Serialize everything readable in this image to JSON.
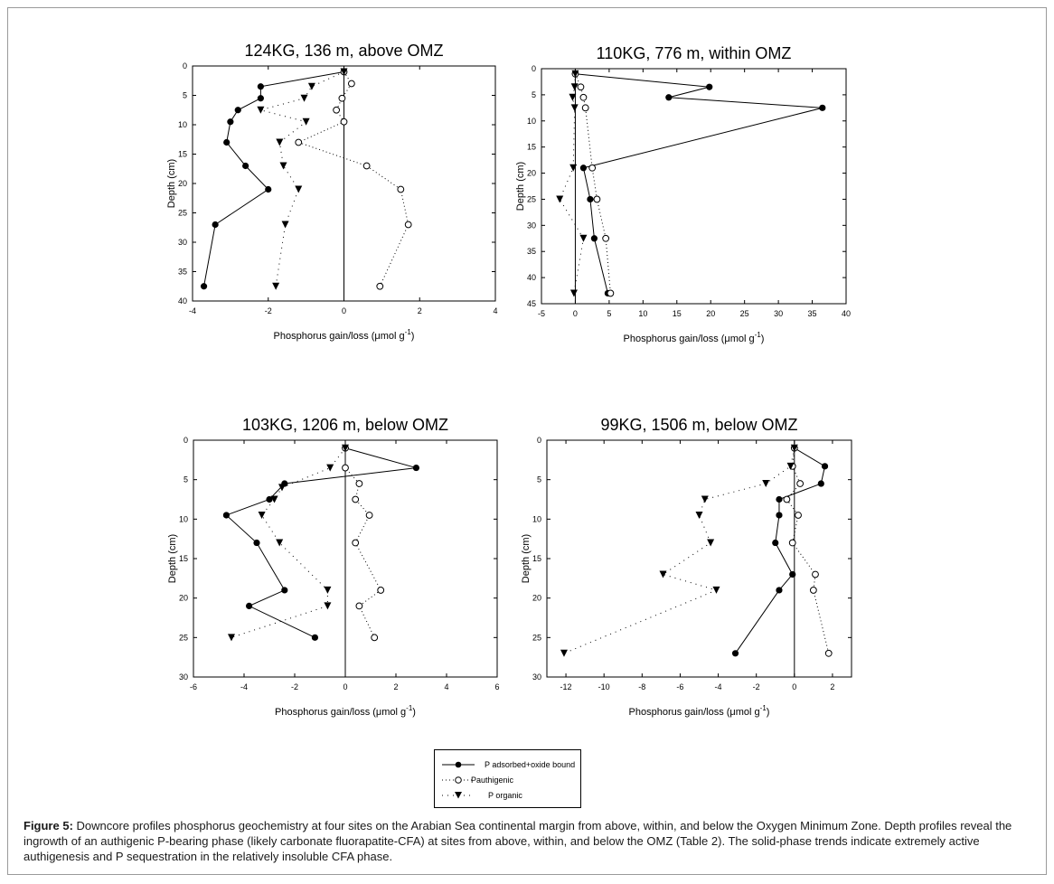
{
  "figure": {
    "caption_label": "Figure 5:",
    "caption_text": " Downcore profiles phosphorus geochemistry at four sites on the Arabian Sea continental margin from above, within, and below the Oxygen Minimum Zone. Depth profiles reveal the ingrowth of an authigenic P-bearing phase (likely carbonate fluorapatite-CFA) at sites from above, within, and below the OMZ (Table 2). The solid-phase trends indicate extremely active authigenesis and P sequestration in the relatively insoluble CFA phase."
  },
  "legend": {
    "items": [
      {
        "label": "P adsorbed+oxide bound",
        "marker": "filled-circle",
        "line": "solid"
      },
      {
        "label": "Pauthigenic",
        "marker": "open-circle",
        "line": "dotted"
      },
      {
        "label": "P organic",
        "marker": "filled-triangle",
        "line": "dotted"
      }
    ]
  },
  "colors": {
    "ink": "#000000",
    "frame": "#9a9a9a",
    "background": "#ffffff"
  },
  "chart_data": [
    {
      "type": "scatter",
      "title": "124KG, 136 m, above OMZ",
      "xlabel": "Phosphorus gain/loss (μmol g",
      "xlabel_sup": "-1",
      "xlabel_end": ")",
      "ylabel": "Depth (cm)",
      "xlim": [
        -4,
        4
      ],
      "ylim": [
        0,
        40
      ],
      "y_inverted": true,
      "xticks": [
        -4,
        -2,
        0,
        2,
        4
      ],
      "yticks": [
        0,
        5,
        10,
        15,
        20,
        25,
        30,
        35,
        40
      ],
      "series": [
        {
          "name": "P adsorbed+oxide bound",
          "style": "solid-filled-circle",
          "x": [
            0,
            -2.2,
            -2.2,
            -2.8,
            -3.0,
            -3.1,
            -2.6,
            -2.0,
            -3.4,
            -3.7
          ],
          "y": [
            1,
            3.5,
            5.5,
            7.5,
            9.5,
            13,
            17,
            21,
            27,
            37.5
          ]
        },
        {
          "name": "Pauthigenic",
          "style": "dotted-open-circle",
          "x": [
            0,
            0.2,
            -0.05,
            -0.2,
            0,
            -1.2,
            0.6,
            1.5,
            1.7,
            0.95
          ],
          "y": [
            1,
            3,
            5.5,
            7.5,
            9.5,
            13,
            17,
            21,
            27,
            37.5
          ]
        },
        {
          "name": "P organic",
          "style": "dotted-filled-triangle",
          "x": [
            0,
            -0.85,
            -1.05,
            -2.2,
            -1.0,
            -1.7,
            -1.6,
            -1.2,
            -1.55,
            -1.8
          ],
          "y": [
            1,
            3.5,
            5.5,
            7.5,
            9.5,
            13,
            17,
            21,
            27,
            37.5
          ]
        }
      ]
    },
    {
      "type": "scatter",
      "title": "110KG, 776 m, within OMZ",
      "xlabel": "Phosphorus gain/loss (μmol g",
      "xlabel_sup": "-1",
      "xlabel_end": ")",
      "ylabel": "Depth (cm)",
      "xlim": [
        -5,
        40
      ],
      "ylim": [
        0,
        45
      ],
      "y_inverted": true,
      "xticks": [
        -5,
        0,
        5,
        10,
        15,
        20,
        25,
        30,
        35,
        40
      ],
      "yticks": [
        0,
        5,
        10,
        15,
        20,
        25,
        30,
        35,
        40,
        45
      ],
      "series": [
        {
          "name": "P adsorbed+oxide bound",
          "style": "solid-filled-circle",
          "x": [
            0,
            19.8,
            13.8,
            36.5,
            1.2,
            2.2,
            2.8,
            4.8
          ],
          "y": [
            1,
            3.5,
            5.5,
            7.5,
            19,
            25,
            32.5,
            43
          ]
        },
        {
          "name": "Pauthigenic",
          "style": "dotted-open-circle",
          "x": [
            0,
            0.8,
            1.2,
            1.5,
            2.5,
            3.2,
            4.5,
            5.2
          ],
          "y": [
            1,
            3.5,
            5.5,
            7.5,
            19,
            25,
            32.5,
            43
          ]
        },
        {
          "name": "P organic",
          "style": "dotted-filled-triangle",
          "x": [
            0,
            -0.1,
            -0.4,
            -0.1,
            -0.3,
            -2.3,
            1.2,
            -0.2
          ],
          "y": [
            1,
            3.5,
            5.5,
            7.5,
            19,
            25,
            32.5,
            43
          ]
        }
      ]
    },
    {
      "type": "scatter",
      "title": "103KG, 1206 m, below OMZ",
      "xlabel": "Phosphorus gain/loss (μmol g",
      "xlabel_sup": "-1",
      "xlabel_end": ")",
      "ylabel": "Depth (cm)",
      "xlim": [
        -6,
        6
      ],
      "ylim": [
        0,
        30
      ],
      "y_inverted": true,
      "xticks": [
        -6,
        -4,
        -2,
        0,
        2,
        4,
        6
      ],
      "yticks": [
        0,
        5,
        10,
        15,
        20,
        25,
        30
      ],
      "series": [
        {
          "name": "P adsorbed+oxide bound",
          "style": "solid-filled-circle",
          "x": [
            0,
            2.8,
            -2.4,
            -3.0,
            -4.7,
            -3.5,
            -2.4,
            -3.8,
            -1.2
          ],
          "y": [
            1,
            3.5,
            5.5,
            7.5,
            9.5,
            13,
            19,
            21,
            25
          ]
        },
        {
          "name": "Pauthigenic",
          "style": "dotted-open-circle",
          "x": [
            0,
            0,
            0.55,
            0.4,
            0.95,
            0.4,
            1.4,
            0.55,
            1.15
          ],
          "y": [
            1,
            3.5,
            5.5,
            7.5,
            9.5,
            13,
            19,
            21,
            25
          ]
        },
        {
          "name": "P organic",
          "style": "dotted-filled-triangle",
          "x": [
            0,
            -0.6,
            -2.5,
            -2.8,
            -3.3,
            -2.6,
            -0.7,
            -0.7,
            -4.5
          ],
          "y": [
            1,
            3.5,
            6,
            7.5,
            9.5,
            13,
            19,
            21,
            25
          ]
        }
      ]
    },
    {
      "type": "scatter",
      "title": "99KG, 1506 m, below OMZ",
      "xlabel": "Phosphorus gain/loss (μmol g",
      "xlabel_sup": "-1",
      "xlabel_end": ")",
      "ylabel": "Depth (cm)",
      "xlim": [
        -13,
        3
      ],
      "ylim": [
        0,
        30
      ],
      "y_inverted": true,
      "xticks": [
        -12,
        -10,
        -8,
        -6,
        -4,
        -2,
        0,
        2
      ],
      "yticks": [
        0,
        5,
        10,
        15,
        20,
        25,
        30
      ],
      "series": [
        {
          "name": "P adsorbed+oxide bound",
          "style": "solid-filled-circle",
          "x": [
            0,
            1.6,
            1.4,
            -0.8,
            -0.8,
            -1.0,
            -0.1,
            -0.8,
            -3.1
          ],
          "y": [
            1,
            3.3,
            5.5,
            7.5,
            9.5,
            13,
            17,
            19,
            27
          ]
        },
        {
          "name": "Pauthigenic",
          "style": "dotted-open-circle",
          "x": [
            0,
            -0.1,
            0.3,
            -0.4,
            0.2,
            -0.1,
            1.1,
            1.0,
            1.8
          ],
          "y": [
            1,
            3.3,
            5.5,
            7.5,
            9.5,
            13,
            17,
            19,
            27
          ]
        },
        {
          "name": "P organic",
          "style": "dotted-filled-triangle",
          "x": [
            0,
            -0.2,
            -1.5,
            -4.7,
            -5.0,
            -4.4,
            -6.9,
            -4.1,
            -12.1
          ],
          "y": [
            1,
            3.3,
            5.5,
            7.5,
            9.5,
            13,
            17,
            19,
            27
          ]
        }
      ]
    }
  ]
}
